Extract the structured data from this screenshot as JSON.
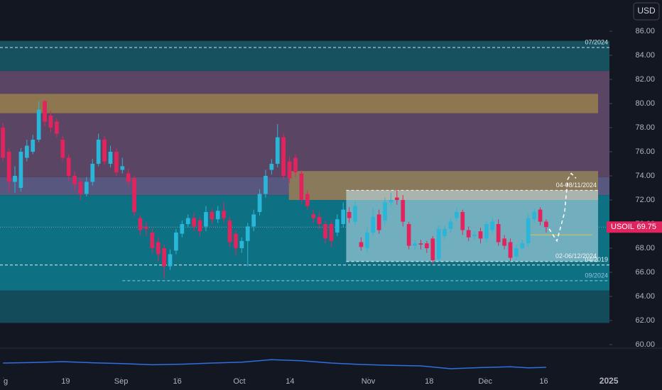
{
  "chart_data": {
    "type": "candlestick",
    "symbol": "USOIL",
    "currency": "USD",
    "last_price": 69.75,
    "up_color": "#29b6d8",
    "down_color": "#e1245d",
    "xlim": [
      -0.5,
      101.6
    ],
    "ylim": [
      60,
      86
    ],
    "yticks": [
      {
        "value": 86,
        "label": "86.00"
      },
      {
        "value": 84,
        "label": "84.00"
      },
      {
        "value": 82,
        "label": "82.00"
      },
      {
        "value": 80,
        "label": "80.00"
      },
      {
        "value": 78,
        "label": "78.00"
      },
      {
        "value": 76,
        "label": "76.00"
      },
      {
        "value": 74,
        "label": "74.00"
      },
      {
        "value": 72,
        "label": "72.00"
      },
      {
        "value": 70,
        "label": "70.00"
      },
      {
        "value": 68,
        "label": "68.00"
      },
      {
        "value": 66,
        "label": "66.00"
      },
      {
        "value": 64,
        "label": "64.00"
      },
      {
        "value": 62,
        "label": "62.00"
      },
      {
        "value": 60,
        "label": "60.00"
      }
    ],
    "xticks": [
      {
        "value": 0.1,
        "label": "g"
      },
      {
        "value": 10.5,
        "label": "19"
      },
      {
        "value": 19.8,
        "label": "Sep"
      },
      {
        "value": 29.2,
        "label": "16"
      },
      {
        "value": 39.6,
        "label": "Oct"
      },
      {
        "value": 48.1,
        "label": "14"
      },
      {
        "value": 61.2,
        "label": "Nov"
      },
      {
        "value": 71.4,
        "label": "18"
      },
      {
        "value": 80.8,
        "label": "Dec"
      },
      {
        "value": 90.6,
        "label": "16"
      },
      {
        "value": 101.5,
        "label": "2025"
      }
    ],
    "open": [
      78,
      76,
      73.5,
      73,
      75.5,
      76,
      77,
      80.2,
      79,
      78.5,
      77,
      75.5,
      74,
      73.5,
      72.5,
      73.5,
      75,
      77,
      75,
      76,
      74.5,
      74.2,
      73.8,
      70.5,
      69.8,
      69.3,
      68.5,
      68,
      66.5,
      67.8,
      69.2,
      70,
      70.5,
      70.3,
      69.8,
      71,
      70.4,
      71.1,
      70.3,
      69.2,
      68,
      68.6,
      69.8,
      71,
      72.5,
      74.5,
      75,
      77.2,
      75.2,
      75.5,
      74.2,
      72.5,
      70.8,
      70.6,
      70,
      70,
      69.3,
      70,
      71,
      70.2,
      68.5,
      68,
      69.3,
      70.8,
      70.3,
      71.8,
      72.2,
      72,
      70,
      68.2,
      68.4,
      68.4,
      68.8,
      67.1,
      69,
      69.6,
      70.5,
      71,
      69.5,
      69,
      69.4,
      68.8,
      69.5,
      70,
      68.8,
      68.5,
      67.3,
      68,
      68.4,
      70.4,
      71.2,
      70.2
    ],
    "close": [
      75.5,
      73.5,
      74,
      76,
      76.5,
      77,
      79.5,
      78.5,
      78,
      77.5,
      75.5,
      74,
      73.3,
      72.5,
      73.5,
      75,
      77,
      75.2,
      76,
      74.3,
      74.8,
      73.5,
      71,
      69.5,
      69.6,
      68,
      67.5,
      66.5,
      67.5,
      69.3,
      70,
      70.5,
      69.8,
      69.4,
      71,
      70.4,
      71.1,
      70.5,
      68.5,
      68,
      68.6,
      69.8,
      70.8,
      72.5,
      74,
      75,
      77.2,
      74,
      73.8,
      74.3,
      72,
      71.5,
      70.5,
      70,
      68.8,
      68.6,
      70.4,
      71.2,
      70.5,
      71.5,
      68.1,
      69.3,
      70.6,
      69.5,
      71.8,
      72,
      72,
      70.2,
      68.2,
      68.4,
      68.3,
      68,
      67,
      69.6,
      69.6,
      70.2,
      71,
      69.5,
      68.9,
      69.1,
      68.8,
      70,
      70.2,
      68.5,
      68.2,
      67.2,
      68,
      68.4,
      70.5,
      71,
      70.2,
      69.75
    ],
    "high": [
      78.4,
      76.3,
      74.8,
      76.3,
      77,
      77.4,
      80.2,
      80.3,
      79.4,
      78.8,
      77.3,
      75.8,
      74.4,
      73.8,
      73.9,
      75.4,
      77.5,
      77.3,
      76.5,
      76.3,
      75.5,
      74.6,
      74,
      70.8,
      70.2,
      69.6,
      68.9,
      68.3,
      67.9,
      69.6,
      70.3,
      70.8,
      70.9,
      70.6,
      71.5,
      71.3,
      71.5,
      71.8,
      70.6,
      69.5,
      68.9,
      70.1,
      71.2,
      72.9,
      74.5,
      75.4,
      78.3,
      77.5,
      75.6,
      75.8,
      74.5,
      72.8,
      71.2,
      71,
      70.3,
      70.3,
      70.8,
      71.8,
      71.4,
      71.9,
      68.9,
      69.7,
      71.3,
      71.2,
      72.2,
      72.6,
      72.9,
      72.4,
      70.2,
      68.7,
      68.7,
      68.6,
      69,
      69.9,
      69.9,
      70.5,
      71.3,
      71.2,
      69.8,
      69.4,
      69.7,
      70.3,
      70.6,
      70.4,
      69.1,
      68.8,
      68.3,
      68.7,
      70.8,
      71.3,
      71.4,
      70.4
    ],
    "low": [
      75.2,
      72.7,
      72.6,
      72.7,
      75.2,
      75.8,
      76.8,
      78.1,
      77.6,
      77.2,
      75.2,
      73.6,
      72.8,
      72,
      72.3,
      73.2,
      74.8,
      74.9,
      74.7,
      74,
      74.2,
      73.1,
      70.6,
      69.1,
      69,
      67.6,
      66.9,
      65.5,
      66.2,
      67.5,
      68.9,
      69.7,
      69.4,
      69,
      69.4,
      70,
      70.1,
      70.1,
      68.1,
      67.4,
      67.6,
      66.5,
      69.4,
      70.7,
      72.2,
      74.1,
      74.7,
      73.7,
      73.4,
      73.9,
      71.7,
      71.2,
      70.1,
      69.6,
      68.4,
      68.1,
      69,
      69.7,
      70.1,
      69.9,
      67.8,
      67.6,
      69,
      69.2,
      69.9,
      71.5,
      71.6,
      69.8,
      67.9,
      67.9,
      67.9,
      67.6,
      66.7,
      66.9,
      68.7,
      69.3,
      70.2,
      69.1,
      68.6,
      68.7,
      68.4,
      68.5,
      69.2,
      68.2,
      67.9,
      66.9,
      67,
      67.9,
      68.1,
      70.1,
      69.9,
      69.3
    ],
    "zones": [
      {
        "from": -0.5,
        "to": 101.6,
        "low": 82.7,
        "high": 85.2,
        "color": "#17505f"
      },
      {
        "from": -0.5,
        "to": 101.6,
        "low": 73.9,
        "high": 82.7,
        "color": "#5a4565"
      },
      {
        "from": -0.5,
        "to": 99.7,
        "low": 79.2,
        "high": 80.8,
        "color": "#8e7650"
      },
      {
        "from": -0.5,
        "to": 101.6,
        "low": 72.4,
        "high": 73.9,
        "color": "#57577f"
      },
      {
        "from": -0.5,
        "to": 101.6,
        "low": 64.5,
        "high": 72.4,
        "color": "#0e7083"
      },
      {
        "from": -0.5,
        "to": 101.6,
        "low": 61.8,
        "high": 64.5,
        "color": "#134b5b"
      },
      {
        "from": 47.9,
        "to": 99.7,
        "low": 72.0,
        "high": 74.4,
        "color": "#8a7a5c"
      },
      {
        "from": 57.5,
        "to": 99.7,
        "low": 66.9,
        "high": 72.8,
        "color": "rgba(195,228,238,0.55)"
      }
    ],
    "levels": [
      {
        "label": "07/2024",
        "value": 84.65,
        "from": -0.5,
        "to": 101.6,
        "color": "#cfe3ea"
      },
      {
        "label": "04-08/11/2024",
        "value": 72.8,
        "from": 57.5,
        "to": 99.7,
        "color": "#f2f2f2"
      },
      {
        "label": "02-06/12/2024",
        "value": 66.9,
        "from": 57.5,
        "to": 99.7,
        "color": "#f2f2f2"
      },
      {
        "label": "04/2019",
        "value": 66.6,
        "from": -0.5,
        "to": 101.6,
        "color": "#e6eef0"
      },
      {
        "label": "09/2024",
        "value": 65.3,
        "from": 20,
        "to": 101.6,
        "color": "#8fc6e0"
      }
    ],
    "reference_line": {
      "value": 69.1,
      "from": 88.2,
      "to": 98.7,
      "color": "#d9c34a"
    },
    "projection": {
      "x": [
        91.5,
        92.8,
        94.1,
        94.6,
        95.2,
        96.0
      ],
      "values": [
        69.6,
        68.6,
        71.0,
        73.7,
        74.2,
        73.8
      ]
    },
    "indicator": {
      "color": "#2f6fe0",
      "ylim": [
        0,
        100
      ],
      "x": [
        0,
        5,
        10,
        15,
        20,
        25,
        30,
        35,
        40,
        45,
        50,
        55,
        60,
        65,
        70,
        75,
        80,
        85,
        88,
        91
      ],
      "values": [
        50,
        52,
        55,
        51,
        48,
        44,
        46,
        50,
        53,
        62,
        58,
        50,
        45,
        42,
        40,
        30,
        34,
        37,
        33,
        35
      ]
    }
  }
}
